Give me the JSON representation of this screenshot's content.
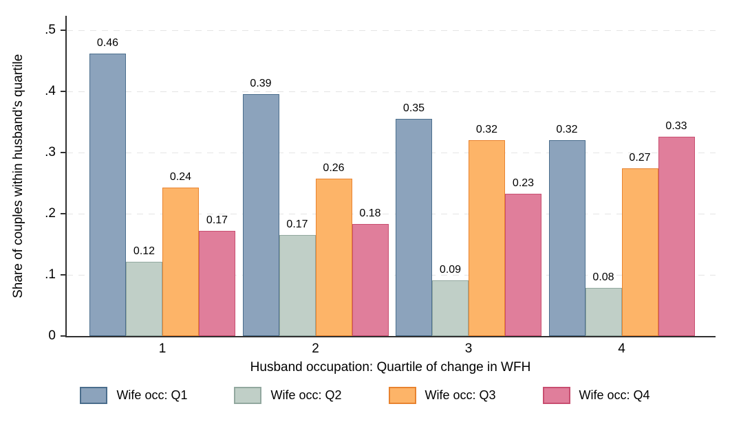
{
  "chart_data": {
    "type": "bar",
    "title": "",
    "xlabel": "Husband occupation: Quartile of change in WFH",
    "ylabel": "Share of couples within husband's quartile",
    "categories": [
      "1",
      "2",
      "3",
      "4"
    ],
    "series": [
      {
        "name": "Wife occ: Q1",
        "fill": "#8ca3bc",
        "border": "#4a6d8c",
        "values": [
          0.462,
          0.395,
          0.355,
          0.32
        ],
        "labels": [
          "0.46",
          "0.39",
          "0.35",
          "0.32"
        ]
      },
      {
        "name": "Wife occ: Q2",
        "fill": "#c0cfc7",
        "border": "#92a89f",
        "values": [
          0.121,
          0.165,
          0.091,
          0.079
        ],
        "labels": [
          "0.12",
          "0.17",
          "0.09",
          "0.08"
        ]
      },
      {
        "name": "Wife occ: Q3",
        "fill": "#fdb468",
        "border": "#e8832f",
        "values": [
          0.243,
          0.257,
          0.32,
          0.274
        ],
        "labels": [
          "0.24",
          "0.26",
          "0.32",
          "0.27"
        ]
      },
      {
        "name": "Wife occ: Q4",
        "fill": "#e07e9b",
        "border": "#c84e70",
        "values": [
          0.172,
          0.183,
          0.233,
          0.326
        ],
        "labels": [
          "0.17",
          "0.18",
          "0.23",
          "0.33"
        ]
      }
    ],
    "yticks": [
      "0",
      ".1",
      ".2",
      ".3",
      ".4",
      ".5"
    ],
    "ylim": [
      0,
      0.5
    ],
    "grid": "horizontal-dashed",
    "grid_color": "#e4e4e4",
    "axis_color": "#303030",
    "legend_position": "bottom"
  }
}
